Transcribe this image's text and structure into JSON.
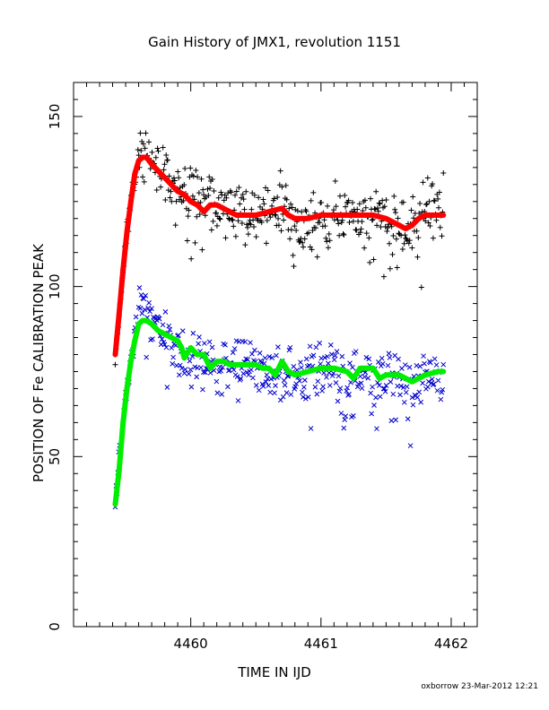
{
  "chart_data": {
    "type": "scatter",
    "title": "Gain History of JMX1, revolution 1151",
    "xlabel": "TIME IN IJD",
    "ylabel": "POSITION OF Fe CALIBRATION PEAK",
    "xlim": [
      4459.1,
      4462.2
    ],
    "ylim": [
      0,
      160
    ],
    "xticks": [
      4460,
      4461,
      4462
    ],
    "yticks": [
      0,
      50,
      100,
      150
    ],
    "grid": false,
    "legend": "none",
    "series": [
      {
        "marker": "+",
        "color": "#000000",
        "description_points": [
          [
            4459.42,
            80
          ],
          [
            4459.45,
            92
          ],
          [
            4459.48,
            105
          ],
          [
            4459.51,
            115
          ],
          [
            4459.54,
            124
          ],
          [
            4459.57,
            132
          ],
          [
            4459.6,
            136
          ],
          [
            4459.63,
            138
          ],
          [
            4459.66,
            140
          ],
          [
            4459.7,
            137
          ],
          [
            4459.75,
            134
          ],
          [
            4459.8,
            132
          ],
          [
            4459.85,
            130
          ],
          [
            4459.9,
            127
          ],
          [
            4459.95,
            128
          ],
          [
            4460.0,
            126
          ],
          [
            4460.05,
            124
          ],
          [
            4460.1,
            127
          ],
          [
            4460.15,
            125
          ],
          [
            4460.2,
            124
          ],
          [
            4460.25,
            123
          ],
          [
            4460.3,
            124
          ],
          [
            4460.35,
            120
          ],
          [
            4460.4,
            122
          ],
          [
            4460.45,
            121
          ],
          [
            4460.5,
            124
          ],
          [
            4460.55,
            122
          ],
          [
            4460.6,
            123
          ],
          [
            4460.65,
            121
          ],
          [
            4460.7,
            124
          ],
          [
            4460.75,
            120
          ],
          [
            4460.8,
            122
          ],
          [
            4460.85,
            119
          ],
          [
            4460.9,
            121
          ],
          [
            4460.95,
            120
          ],
          [
            4461.0,
            122
          ],
          [
            4461.05,
            119
          ],
          [
            4461.1,
            121
          ],
          [
            4461.15,
            120
          ],
          [
            4461.2,
            122
          ],
          [
            4461.25,
            121
          ],
          [
            4461.3,
            119
          ],
          [
            4461.35,
            122
          ],
          [
            4461.4,
            120
          ],
          [
            4461.45,
            121
          ],
          [
            4461.5,
            119
          ],
          [
            4461.55,
            120
          ],
          [
            4461.6,
            118
          ],
          [
            4461.65,
            119
          ],
          [
            4461.7,
            117
          ],
          [
            4461.75,
            120
          ],
          [
            4461.8,
            121
          ],
          [
            4461.85,
            122
          ],
          [
            4461.9,
            123
          ],
          [
            4461.94,
            124
          ]
        ],
        "values_note": ""
      },
      {
        "marker": "line",
        "color": "#ff0000",
        "x": [
          4459.42,
          4459.45,
          4459.48,
          4459.51,
          4459.54,
          4459.57,
          4459.6,
          4459.63,
          4459.66,
          4459.7,
          4459.75,
          4459.8,
          4459.85,
          4459.9,
          4459.95,
          4460.0,
          4460.05,
          4460.1,
          4460.15,
          4460.2,
          4460.25,
          4460.3,
          4460.35,
          4460.4,
          4460.5,
          4460.6,
          4460.7,
          4460.75,
          4460.8,
          4460.9,
          4461.0,
          4461.1,
          4461.2,
          4461.3,
          4461.4,
          4461.5,
          4461.6,
          4461.65,
          4461.7,
          4461.75,
          4461.8,
          4461.85,
          4461.9,
          4461.94
        ],
        "values": [
          80,
          92,
          105,
          116,
          125,
          133,
          137,
          138,
          138,
          136,
          134,
          132,
          130,
          128,
          127,
          125,
          124,
          122,
          124,
          124,
          123,
          122,
          121,
          121,
          121,
          122,
          123,
          121,
          120,
          120,
          121,
          121,
          121,
          121,
          121,
          120,
          118,
          117,
          118,
          120,
          121,
          121,
          121,
          121
        ]
      },
      {
        "marker": "x",
        "color": "#0000cc",
        "description_points": [
          [
            4459.42,
            38
          ],
          [
            4459.45,
            48
          ],
          [
            4459.48,
            60
          ],
          [
            4459.51,
            70
          ],
          [
            4459.54,
            78
          ],
          [
            4459.57,
            86
          ],
          [
            4459.6,
            92
          ],
          [
            4459.63,
            95
          ],
          [
            4459.66,
            95
          ],
          [
            4459.7,
            91
          ],
          [
            4459.75,
            88
          ],
          [
            4459.8,
            85
          ],
          [
            4459.85,
            84
          ],
          [
            4459.9,
            80
          ],
          [
            4459.95,
            78
          ],
          [
            4460.0,
            81
          ],
          [
            4460.05,
            79
          ],
          [
            4460.1,
            78
          ],
          [
            4460.15,
            77
          ],
          [
            4460.2,
            78
          ],
          [
            4460.3,
            77
          ],
          [
            4460.4,
            78
          ],
          [
            4460.5,
            76
          ],
          [
            4460.6,
            74
          ],
          [
            4460.7,
            77
          ],
          [
            4460.8,
            73
          ],
          [
            4460.9,
            75
          ],
          [
            4461.0,
            76
          ],
          [
            4461.1,
            76
          ],
          [
            4461.2,
            73
          ],
          [
            4461.3,
            75
          ],
          [
            4461.4,
            72
          ],
          [
            4461.5,
            74
          ],
          [
            4461.6,
            73
          ],
          [
            4461.7,
            72
          ],
          [
            4461.8,
            75
          ],
          [
            4461.9,
            74
          ],
          [
            4461.94,
            72
          ]
        ],
        "values_note": ""
      },
      {
        "marker": "line",
        "color": "#00ee00",
        "x": [
          4459.42,
          4459.45,
          4459.48,
          4459.51,
          4459.54,
          4459.57,
          4459.6,
          4459.63,
          4459.66,
          4459.7,
          4459.75,
          4459.8,
          4459.85,
          4459.9,
          4459.93,
          4459.95,
          4460.0,
          4460.05,
          4460.1,
          4460.15,
          4460.2,
          4460.25,
          4460.3,
          4460.4,
          4460.5,
          4460.55,
          4460.6,
          4460.65,
          4460.7,
          4460.75,
          4460.8,
          4460.9,
          4461.0,
          4461.1,
          4461.2,
          4461.25,
          4461.3,
          4461.4,
          4461.45,
          4461.5,
          4461.6,
          4461.7,
          4461.8,
          4461.9,
          4461.94
        ],
        "values": [
          36,
          46,
          60,
          70,
          78,
          84,
          89,
          90,
          90,
          89,
          87,
          86,
          85,
          84,
          82,
          79,
          82,
          80,
          80,
          76,
          78,
          78,
          77,
          77,
          77,
          76,
          76,
          74,
          78,
          75,
          74,
          75,
          76,
          76,
          75,
          73,
          76,
          76,
          73,
          74,
          74,
          72,
          74,
          75,
          75
        ]
      }
    ]
  },
  "footer": {
    "stamp": "oxborrow 23-Mar-2012 12:21"
  }
}
